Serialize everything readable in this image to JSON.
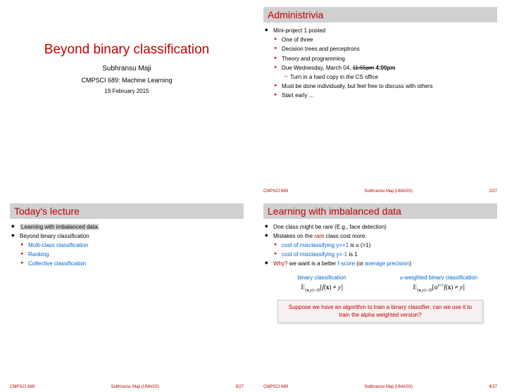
{
  "slide1": {
    "title": "Beyond binary classification",
    "author": "Subhransu Maji",
    "course": "CMPSCI 689: Machine Learning",
    "date": "19 February 2015"
  },
  "slide2": {
    "title": "Administrivia",
    "items": {
      "l1": "Mini-project 1 posted",
      "l2": "One of three",
      "l3": "Decision trees and perceptrons",
      "l4": "Theory and programming",
      "l5a": "Due Wednesday, March 04, ",
      "l5b": "11:55pm",
      "l5c": " 4:00pm",
      "l6": "Turn in a hard copy in the CS office",
      "l7": "Must be done individually, but feel free to discuss with others",
      "l8": "Start early …"
    },
    "footer": {
      "left": "CMPSCI 689",
      "mid": "Subhransu Maji (UMASS)",
      "right": "2/27"
    }
  },
  "slide3": {
    "title": "Today's lecture",
    "items": {
      "l1": "Learning with imbalanced data",
      "l2": "Beyond binary classification",
      "l3": "Multi-class classification",
      "l4": "Ranking",
      "l5": "Collective classification"
    },
    "footer": {
      "left": "CMPSCI 689",
      "mid": "Subhransu Maji (UMASS)",
      "right": "3/27"
    }
  },
  "slide4": {
    "title": "Learning with imbalanced data",
    "items": {
      "l1": "One class might be rare (E.g., face detection)",
      "l2a": "Mistakes on the ",
      "l2b": "rare",
      "l2c": " class cost more:",
      "l3a": "cost of misclassifying y=+1",
      "l3b": " is ",
      "l3c": "α",
      "l3d": "  (>1)",
      "l4a": "cost of misclassifying y=-1",
      "l4b": " is 1",
      "l5a": "Why?",
      "l5b": " we want is a better ",
      "l5c": "f-score",
      "l5d": " (or ",
      "l5e": "average precision",
      "l5f": ")"
    },
    "math": {
      "head1": "binary classification",
      "head2a": "α",
      "head2b": "-weighted binary classification",
      "expr1a": "𝔼",
      "expr1b": "(x,y)∼D",
      "expr1c": "[f(x) ≠ y]",
      "expr2a": "𝔼",
      "expr2b": "(x,y)∼D",
      "expr2c": "[α",
      "expr2d": "y=1",
      "expr2e": "f(x) ≠ y]"
    },
    "callout": "Suppose we have an algorithm to train a binary classifier, can we use it to train the alpha weighted version?",
    "footer": {
      "left": "CMPSCI 689",
      "mid": "Subhransu Maji (UMASS)",
      "right": "4/27"
    }
  }
}
